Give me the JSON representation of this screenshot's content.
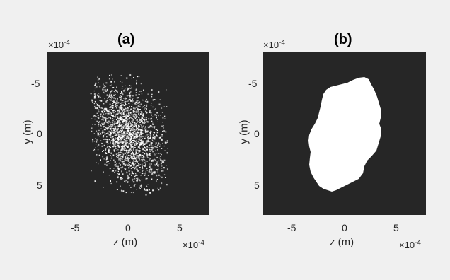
{
  "panels": [
    {
      "title": "(a)",
      "xlabel": "z (m)",
      "ylabel": "y (m)",
      "x_exponent_base": "×10",
      "x_exponent_power": "-4",
      "y_exponent_base": "×10",
      "y_exponent_power": "-4",
      "xticks": [
        "-5",
        "0",
        "5"
      ],
      "yticks": [
        "-5",
        "0",
        "5"
      ],
      "content": "scatter-speckle"
    },
    {
      "title": "(b)",
      "xlabel": "z (m)",
      "ylabel": "y (m)",
      "x_exponent_base": "×10",
      "x_exponent_power": "-4",
      "y_exponent_base": "×10",
      "y_exponent_power": "-4",
      "xticks": [
        "-5",
        "0",
        "5"
      ],
      "yticks": [
        "-5",
        "0",
        "5"
      ],
      "content": "filled-blob"
    }
  ],
  "colors": {
    "background": "#f0f0f0",
    "plot_background": "#262626",
    "foreground": "#ffffff",
    "text": "#262626"
  }
}
